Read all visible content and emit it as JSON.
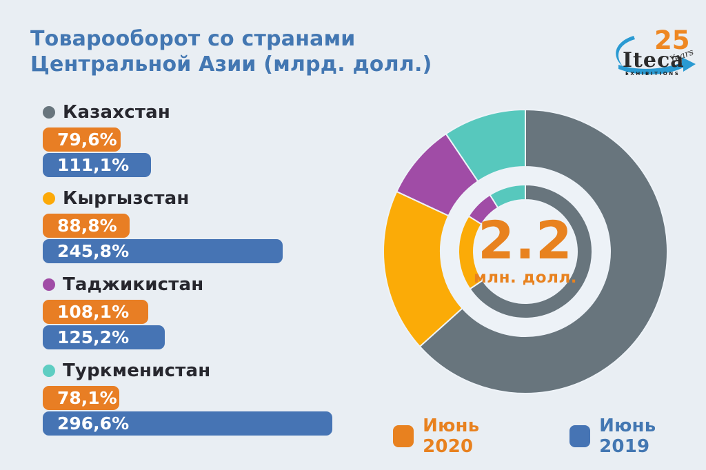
{
  "title": {
    "line1": "Товарооборот со странами",
    "line2": "Центральной Азии (млрд. долл.)"
  },
  "logo": {
    "brand": "Iteca",
    "exhibitions": "EXHIBITIONS",
    "anniversary_number": "25",
    "anniversary_word": "Years"
  },
  "colors": {
    "background": "#e9eef3",
    "title_blue": "#4377b2",
    "orange": "#e87e24",
    "blue": "#4674b4",
    "gray": "#68757d",
    "yellow": "#fbab07",
    "purple": "#a04ca6",
    "teal": "#57c8bd",
    "center_orange": "#e8821f"
  },
  "countries": [
    {
      "name": "Казахстан",
      "dot_color": "#68757d",
      "jun2020_label": "79,6%",
      "jun2020_value": 79.6,
      "jun2019_label": "111,1%",
      "jun2019_value": 111.1
    },
    {
      "name": "Кыргызстан",
      "dot_color": "#fca908",
      "jun2020_label": "88,8%",
      "jun2020_value": 88.8,
      "jun2019_label": "245,8%",
      "jun2019_value": 245.8
    },
    {
      "name": "Таджикистан",
      "dot_color": "#a04ca6",
      "jun2020_label": "108,1%",
      "jun2020_value": 108.1,
      "jun2019_label": "125,2%",
      "jun2019_value": 125.2
    },
    {
      "name": "Туркменистан",
      "dot_color": "#5ecdc2",
      "jun2020_label": "78,1%",
      "jun2020_value": 78.1,
      "jun2019_label": "296,6%",
      "jun2019_value": 296.6
    }
  ],
  "donut": {
    "center_value": "2.2",
    "center_unit": "млн. долл.",
    "rings": [
      {
        "name": "outer",
        "inner_radius": 123,
        "outer_radius": 206,
        "segments": [
          {
            "country": "Казахстан",
            "color": "#68757d",
            "start": 0,
            "end": 228
          },
          {
            "country": "Кыргызстан",
            "color": "#fbab07",
            "start": 228,
            "end": 295
          },
          {
            "country": "Таджикистан",
            "color": "#a04ca6",
            "start": 295,
            "end": 326
          },
          {
            "country": "Туркменистан",
            "color": "#57c8bd",
            "start": 326,
            "end": 360
          }
        ]
      },
      {
        "name": "inner",
        "inner_radius": 75,
        "outer_radius": 97,
        "segments": [
          {
            "country": "Казахстан",
            "color": "#68757d",
            "start": 0,
            "end": 236
          },
          {
            "country": "Кыргызстан",
            "color": "#fbab07",
            "start": 236,
            "end": 302
          },
          {
            "country": "Таджикистан",
            "color": "#a04ca6",
            "start": 302,
            "end": 328
          },
          {
            "country": "Туркменистан",
            "color": "#57c8bd",
            "start": 328,
            "end": 360
          }
        ]
      }
    ]
  },
  "legend": [
    {
      "label": "Июнь 2020",
      "color": "#e8811f",
      "text_color": "#e8811f"
    },
    {
      "label": "Июнь 2019",
      "color": "#4674b4",
      "text_color": "#4377b2"
    }
  ],
  "chart_data": [
    {
      "type": "bar",
      "orientation": "horizontal",
      "title": "Товарооборот со странами Центральной Азии (млрд. долл.)",
      "categories": [
        "Казахстан",
        "Кыргызстан",
        "Таджикистан",
        "Туркменистан"
      ],
      "series": [
        {
          "name": "Июнь 2020",
          "unit": "%",
          "color": "#e87e24",
          "values": [
            79.6,
            88.8,
            108.1,
            78.1
          ]
        },
        {
          "name": "Июнь 2019",
          "unit": "%",
          "color": "#4674b4",
          "values": [
            111.1,
            245.8,
            125.2,
            296.6
          ]
        }
      ],
      "legend_position": "bottom-right"
    },
    {
      "type": "pie",
      "subtype": "double-ring-donut",
      "center_text": "2.2 млн. долл.",
      "categories": [
        "Казахстан",
        "Кыргызстан",
        "Таджикистан",
        "Туркменистан"
      ],
      "colors": [
        "#68757d",
        "#fbab07",
        "#a04ca6",
        "#57c8bd"
      ],
      "series": [
        {
          "name": "outer-ring",
          "values_pct": [
            63.3,
            18.6,
            8.6,
            9.5
          ]
        },
        {
          "name": "inner-ring",
          "values_pct": [
            65.6,
            18.3,
            7.2,
            8.9
          ]
        }
      ]
    }
  ]
}
